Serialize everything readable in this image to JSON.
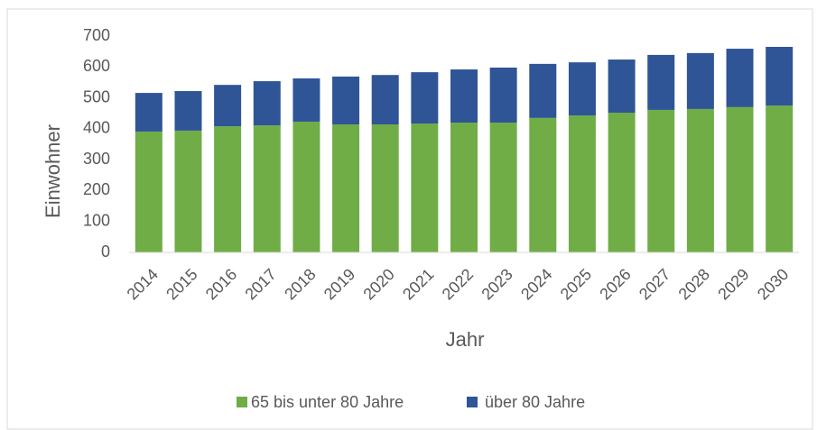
{
  "chart_data": {
    "type": "stacked_bar",
    "y_label": "Einwohner",
    "x_label": "Jahr",
    "categories": [
      "2014",
      "2015",
      "2016",
      "2017",
      "2018",
      "2019",
      "2020",
      "2021",
      "2022",
      "2023",
      "2024",
      "2025",
      "2026",
      "2027",
      "2028",
      "2029",
      "2030"
    ],
    "series": [
      {
        "name": "65 bis unter 80 Jahre",
        "color": "#70ad47",
        "values": [
          391,
          394,
          408,
          411,
          423,
          414,
          414,
          417,
          420,
          420,
          435,
          443,
          452,
          461,
          464,
          470,
          475
        ]
      },
      {
        "name": "über 80 Jahre",
        "color": "#2f5597",
        "values": [
          125,
          128,
          134,
          143,
          140,
          155,
          160,
          166,
          172,
          178,
          175,
          172,
          172,
          178,
          181,
          189,
          190
        ]
      }
    ],
    "ylim": [
      0,
      700
    ],
    "yticks": [
      0,
      100,
      200,
      300,
      400,
      500,
      600,
      700
    ],
    "grid": false,
    "legend": "bottom"
  }
}
